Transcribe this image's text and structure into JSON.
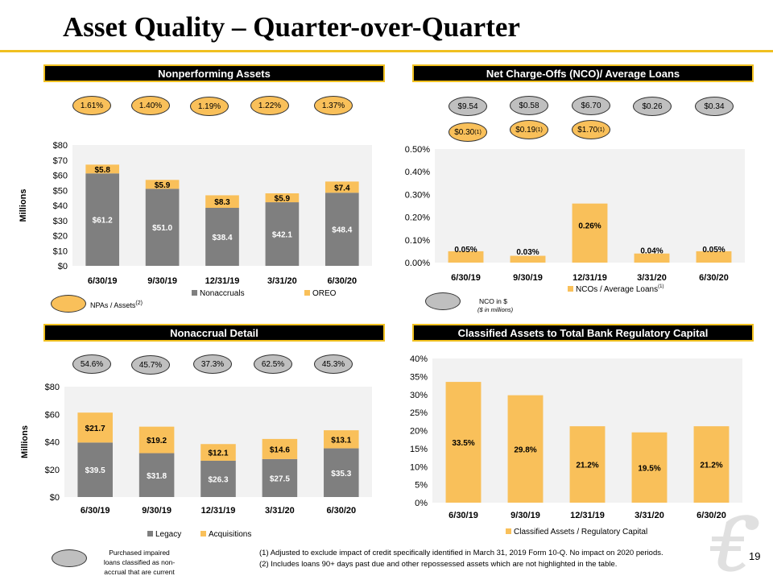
{
  "title": "Asset Quality – Quarter-over-Quarter",
  "headers": {
    "npa": "Nonperforming Assets",
    "nco": "Net Charge-Offs (NCO)/ Average Loans",
    "nonaccrual": "Nonaccrual Detail",
    "classified": "Classified Assets to Total Bank Regulatory Capital"
  },
  "npa_ovals": [
    "1.61%",
    "1.40%",
    "1.19%",
    "1.22%",
    "1.37%"
  ],
  "nco_ovals_gray": [
    "$9.54",
    "$0.58",
    "$6.70",
    "$0.26",
    "$0.34"
  ],
  "nco_ovals_yellow": [
    "$0.30",
    "$0.19",
    "$1.70"
  ],
  "nco_ovals_yellow_sup": [
    "(1)",
    "(1)",
    "(1)"
  ],
  "nonaccrual_ovals": [
    "54.6%",
    "45.7%",
    "37.3%",
    "62.5%",
    "45.3%"
  ],
  "legends": {
    "npa_oval": "NPAs / Assets",
    "npa_oval_sup": "(2)",
    "nco_oval": "NCO in $",
    "nco_oval_sub": "($ in millions)",
    "nco_series_sup": "(1)",
    "nonaccrual_oval_l1": "Purchased impaired",
    "nonaccrual_oval_l2": "loans classified as non-",
    "nonaccrual_oval_l3": "accrual that are current"
  },
  "footnotes": [
    "(1)   Adjusted to exclude impact of credit specifically identified in March 31, 2019 Form 10-Q.  No impact on 2020 periods.",
    "(2)   Includes loans 90+ days past due and other repossessed assets which are not highlighted in the table."
  ],
  "page_number": "19",
  "colors": {
    "accent": "#f0c020",
    "bar_gold": "#f9c05a",
    "bar_gray": "#7f7f7f",
    "oval_gray": "#bfbfbf"
  },
  "chart_data": [
    {
      "type": "bar",
      "stacked": true,
      "categories": [
        "6/30/19",
        "9/30/19",
        "12/31/19",
        "3/31/20",
        "6/30/20"
      ],
      "series": [
        {
          "name": "Nonaccruals",
          "values": [
            61.2,
            51.0,
            38.4,
            42.1,
            48.4
          ],
          "labels": [
            "$61.2",
            "$51.0",
            "$38.4",
            "$42.1",
            "$48.4"
          ]
        },
        {
          "name": "OREO",
          "values": [
            5.8,
            5.9,
            8.3,
            5.9,
            7.4
          ],
          "labels": [
            "$5.8",
            "$5.9",
            "$8.3",
            "$5.9",
            "$7.4"
          ]
        }
      ],
      "ylabel": "Millions",
      "ylim": [
        0,
        80
      ],
      "yticks": [
        "$0",
        "$10",
        "$20",
        "$30",
        "$40",
        "$50",
        "$60",
        "$70",
        "$80"
      ],
      "grid": false,
      "legend": "bottom"
    },
    {
      "type": "bar",
      "categories": [
        "6/30/19",
        "9/30/19",
        "12/31/19",
        "3/31/20",
        "6/30/20"
      ],
      "series": [
        {
          "name": "NCOs / Average Loans",
          "values": [
            0.05,
            0.03,
            0.26,
            0.04,
            0.05
          ],
          "labels": [
            "0.05%",
            "0.03%",
            "0.26%",
            "0.04%",
            "0.05%"
          ]
        }
      ],
      "ylim": [
        0,
        0.5
      ],
      "yticks": [
        "0.00%",
        "0.10%",
        "0.20%",
        "0.30%",
        "0.40%",
        "0.50%"
      ],
      "grid": false,
      "legend": "bottom"
    },
    {
      "type": "bar",
      "stacked": true,
      "categories": [
        "6/30/19",
        "9/30/19",
        "12/31/19",
        "3/31/20",
        "6/30/20"
      ],
      "series": [
        {
          "name": "Legacy",
          "values": [
            39.5,
            31.8,
            26.3,
            27.5,
            35.3
          ],
          "labels": [
            "$39.5",
            "$31.8",
            "$26.3",
            "$27.5",
            "$35.3"
          ]
        },
        {
          "name": "Acquisitions",
          "values": [
            21.7,
            19.2,
            12.1,
            14.6,
            13.1
          ],
          "labels": [
            "$21.7",
            "$19.2",
            "$12.1",
            "$14.6",
            "$13.1"
          ]
        }
      ],
      "ylabel": "Millions",
      "ylim": [
        0,
        80
      ],
      "yticks": [
        "$0",
        "$20",
        "$40",
        "$60",
        "$80"
      ],
      "grid": false,
      "legend": "bottom"
    },
    {
      "type": "bar",
      "categories": [
        "6/30/19",
        "9/30/19",
        "12/31/19",
        "3/31/20",
        "6/30/20"
      ],
      "series": [
        {
          "name": "Classified Assets / Regulatory Capital",
          "values": [
            33.5,
            29.8,
            21.2,
            19.5,
            21.2
          ],
          "labels": [
            "33.5%",
            "29.8%",
            "21.2%",
            "19.5%",
            "21.2%"
          ]
        }
      ],
      "ylim": [
        0,
        40
      ],
      "yticks": [
        "0%",
        "5%",
        "10%",
        "15%",
        "20%",
        "25%",
        "30%",
        "35%",
        "40%"
      ],
      "grid": false,
      "legend": "bottom"
    }
  ]
}
